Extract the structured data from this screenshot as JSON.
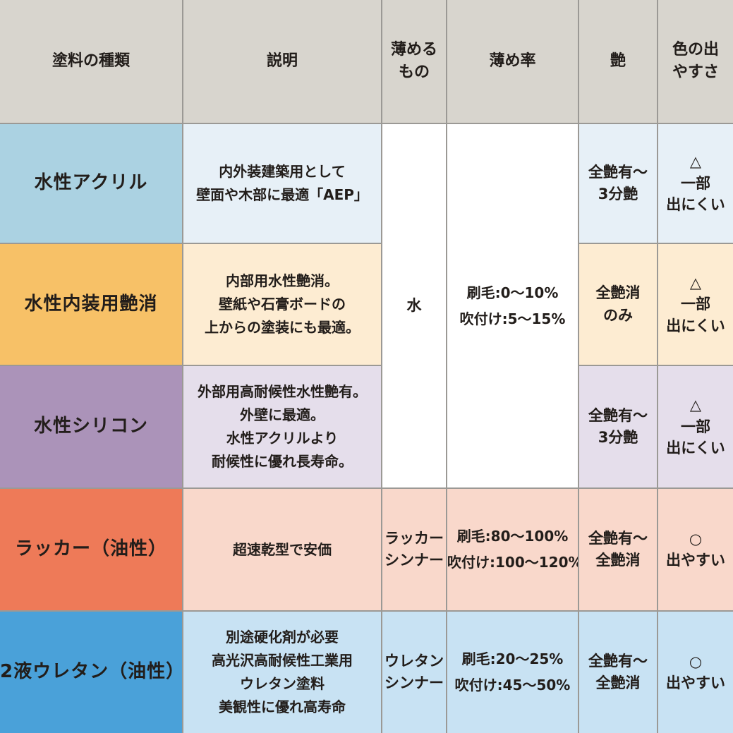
{
  "table": {
    "headers": [
      "塗料の種類",
      "説明",
      "薄める\nもの",
      "薄め率",
      "艶",
      "色の出\nやすさ"
    ],
    "merged_rows_1_to_3": {
      "thinner": "水",
      "rate": "刷毛:0〜10%\n吹付け:5〜15%"
    },
    "rows": [
      {
        "name": "水性アクリル",
        "description": "内外装建築用として\n壁面や木部に最適「AEP」",
        "gloss": "全艶有〜\n3分艶",
        "color_ease": "△\n一部\n出にくい"
      },
      {
        "name": "水性内装用艶消",
        "description": "内部用水性艶消。\n壁紙や石膏ボードの\n上からの塗装にも最適。",
        "gloss": "全艶消\nのみ",
        "color_ease": "△\n一部\n出にくい"
      },
      {
        "name": "水性シリコン",
        "description": "外部用高耐候性水性艶有。\n外壁に最適。\n水性アクリルより\n耐候性に優れ長寿命。",
        "gloss": "全艶有〜\n3分艶",
        "color_ease": "△\n一部\n出にくい"
      },
      {
        "name": "ラッカー（油性）",
        "description": "超速乾型で安価",
        "thinner": "ラッカー\nシンナー",
        "rate": "刷毛:80〜100%\n吹付け:100〜120%",
        "gloss": "全艶有〜\n全艶消",
        "color_ease": "○\n出やすい"
      },
      {
        "name": "2液ウレタン（油性）",
        "description": "別途硬化剤が必要\n高光沢高耐候性工業用\nウレタン塗料\n美観性に優れ高寿命",
        "thinner": "ウレタン\nシンナー",
        "rate": "刷毛:20〜25%\n吹付け:45〜50%",
        "gloss": "全艶有〜\n全艶消",
        "color_ease": "○\n出やすい"
      }
    ]
  },
  "colors": {
    "header_bg": "#d8d5ce",
    "grid_line": "#9b9995",
    "text": "#221d1a",
    "merged_bg": "#ffffff",
    "rows": [
      {
        "name_bg": "#abd2e2",
        "cell_bg": "#e7f0f7"
      },
      {
        "name_bg": "#f7c167",
        "cell_bg": "#fdecd2"
      },
      {
        "name_bg": "#ab93b9",
        "cell_bg": "#e5deeb"
      },
      {
        "name_bg": "#ee7a58",
        "cell_bg": "#f9d8cb"
      },
      {
        "name_bg": "#4aa1d9",
        "cell_bg": "#c8e2f3"
      }
    ]
  }
}
